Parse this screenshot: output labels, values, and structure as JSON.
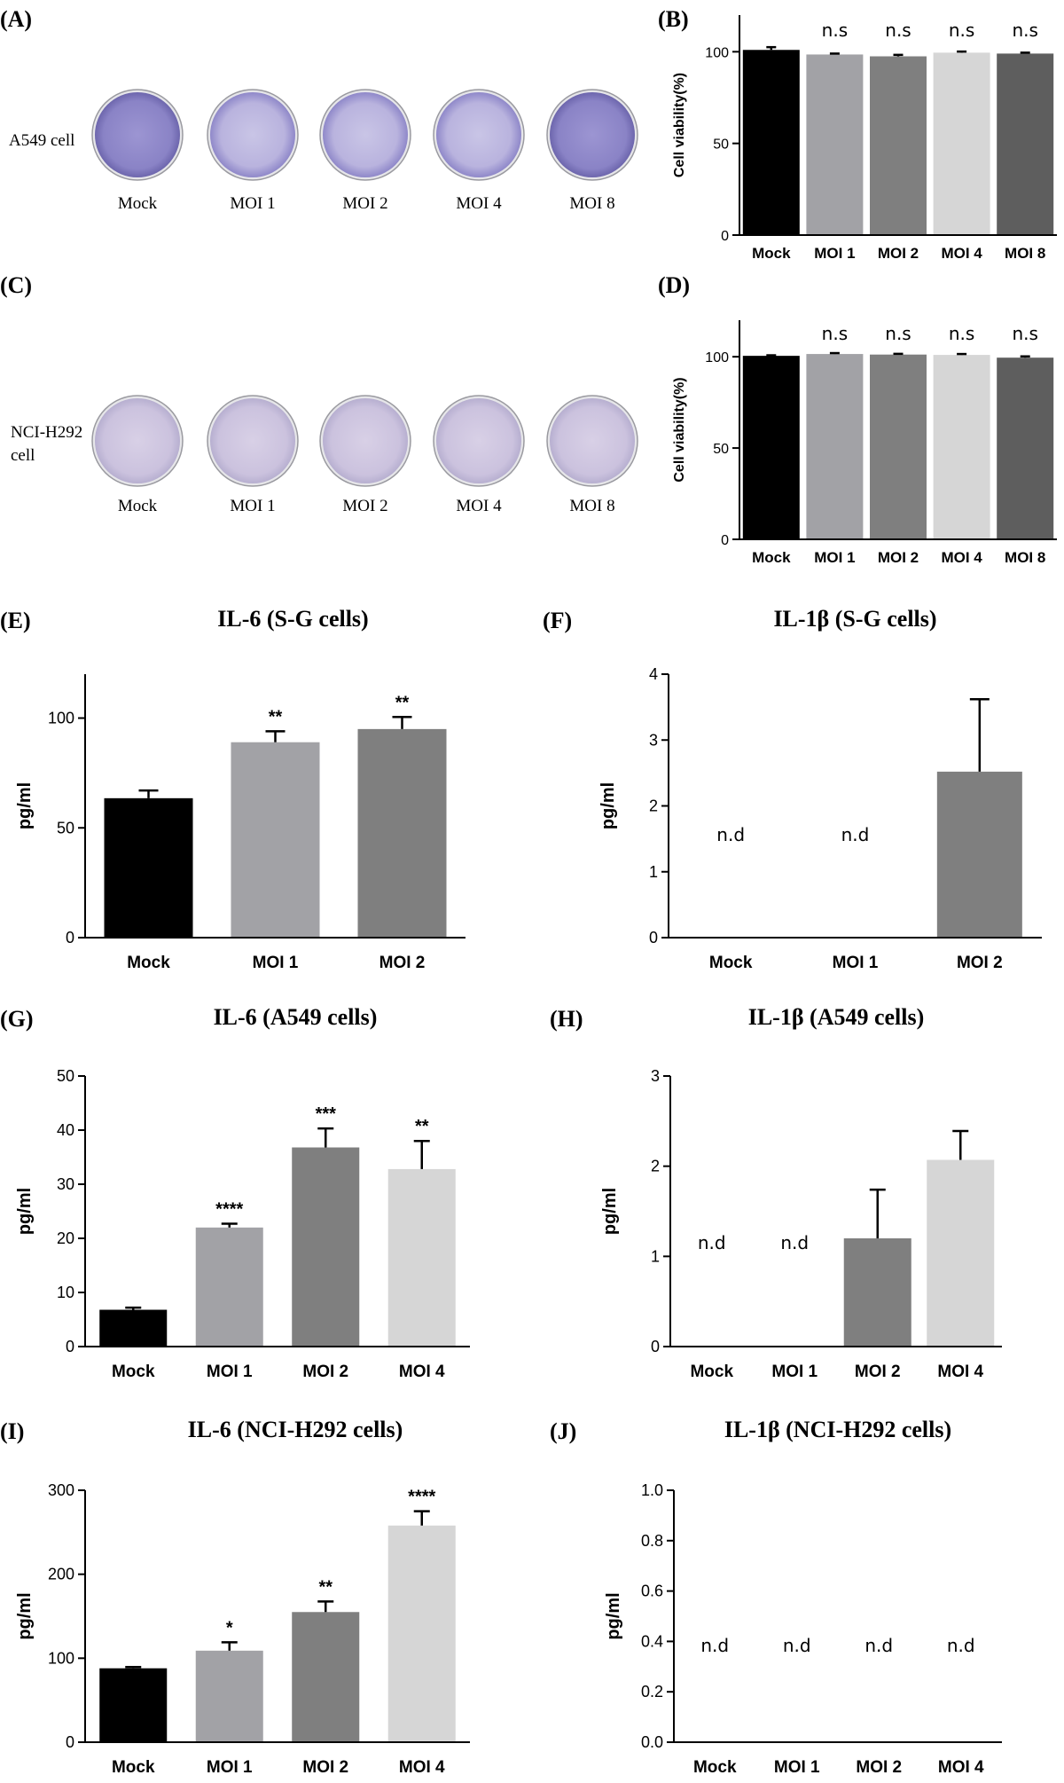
{
  "panels": {
    "A": "(A)",
    "B": "(B)",
    "C": "(C)",
    "D": "(D)",
    "E": "(E)",
    "F": "(F)",
    "G": "(G)",
    "H": "(H)",
    "I": "(I)",
    "J": "(J)"
  },
  "plates": [
    {
      "panel": "A",
      "row_label": "A549 cell",
      "labels": [
        "Mock",
        "MOI 1",
        "MOI 2",
        "MOI 4",
        "MOI 8"
      ],
      "dish_color": "#8f88c9"
    },
    {
      "panel": "C",
      "row_label": "NCI-H292 cell",
      "labels": [
        "Mock",
        "MOI 1",
        "MOI 2",
        "MOI 4",
        "MOI 8"
      ],
      "dish_color": "#c0b7d8"
    }
  ],
  "colors": {
    "Mock": "#000000",
    "MOI 1": "#a2a2a6",
    "MOI 2": "#7f7f7f",
    "MOI 4": "#d6d6d6",
    "MOI 8": "#5e5e5e"
  },
  "chart_data": [
    {
      "id": "B",
      "type": "bar",
      "title": "",
      "categories": [
        "Mock",
        "MOI 1",
        "MOI 2",
        "MOI 4",
        "MOI 8"
      ],
      "values": [
        101,
        98.5,
        97.5,
        99.5,
        99
      ],
      "errors": [
        1.5,
        0.5,
        0.8,
        0.6,
        0.5
      ],
      "annotations": [
        "",
        "n.s",
        "n.s",
        "n.s",
        "n.s"
      ],
      "ylabel": "Cell viability(%)",
      "xlabel": "",
      "ylim": [
        0,
        120
      ],
      "yticks": [
        0,
        50,
        100
      ],
      "ytick_labels": [
        "0",
        "50",
        "100"
      ]
    },
    {
      "id": "D",
      "type": "bar",
      "title": "",
      "categories": [
        "Mock",
        "MOI 1",
        "MOI 2",
        "MOI 4",
        "MOI 8"
      ],
      "values": [
        100.5,
        101.5,
        101.2,
        101,
        99.5
      ],
      "errors": [
        0.3,
        0.5,
        0.4,
        0.5,
        0.7
      ],
      "annotations": [
        "",
        "n.s",
        "n.s",
        "n.s",
        "n.s"
      ],
      "ylabel": "Cell viability(%)",
      "xlabel": "",
      "ylim": [
        0,
        120
      ],
      "yticks": [
        0,
        50,
        100
      ],
      "ytick_labels": [
        "0",
        "50",
        "100"
      ]
    },
    {
      "id": "E",
      "type": "bar",
      "title": "IL-6 (S-G cells)",
      "categories": [
        "Mock",
        "MOI 1",
        "MOI 2"
      ],
      "values": [
        63.5,
        89,
        95
      ],
      "errors": [
        3.5,
        5,
        5.5
      ],
      "annotations": [
        "",
        "**",
        "**"
      ],
      "ylabel": "pg/ml",
      "xlabel": "",
      "ylim": [
        0,
        120
      ],
      "yticks": [
        0,
        50,
        100
      ],
      "ytick_labels": [
        "0",
        "50",
        "100"
      ]
    },
    {
      "id": "F",
      "type": "bar",
      "title": "IL-1β (S-G cells)",
      "categories": [
        "Mock",
        "MOI 1",
        "MOI 2"
      ],
      "values": [
        0,
        0,
        2.52
      ],
      "errors": [
        0,
        0,
        1.1
      ],
      "annotations": [
        "n.d",
        "n.d",
        ""
      ],
      "ylabel": "pg/ml",
      "xlabel": "",
      "ylim": [
        0,
        4
      ],
      "yticks": [
        0,
        1,
        2,
        3,
        4
      ],
      "ytick_labels": [
        "0",
        "1",
        "2",
        "3",
        "4"
      ]
    },
    {
      "id": "G",
      "type": "bar",
      "title": "IL-6 (A549 cells)",
      "categories": [
        "Mock",
        "MOI 1",
        "MOI 2",
        "MOI 4"
      ],
      "values": [
        6.8,
        22,
        36.8,
        32.8
      ],
      "errors": [
        0.4,
        0.7,
        3.5,
        5.2
      ],
      "annotations": [
        "",
        "****",
        "***",
        "**"
      ],
      "ylabel": "pg/ml",
      "xlabel": "",
      "ylim": [
        0,
        50
      ],
      "yticks": [
        0,
        10,
        20,
        30,
        40,
        50
      ],
      "ytick_labels": [
        "0",
        "10",
        "20",
        "30",
        "40",
        "50"
      ]
    },
    {
      "id": "H",
      "type": "bar",
      "title": "IL-1β (A549 cells)",
      "categories": [
        "Mock",
        "MOI 1",
        "MOI 2",
        "MOI 4"
      ],
      "values": [
        0,
        0,
        1.2,
        2.07
      ],
      "errors": [
        0,
        0,
        0.54,
        0.32
      ],
      "annotations": [
        "n.d",
        "n.d",
        "",
        ""
      ],
      "ylabel": "pg/ml",
      "xlabel": "",
      "ylim": [
        0,
        3
      ],
      "yticks": [
        0,
        1,
        2,
        3
      ],
      "ytick_labels": [
        "0",
        "1",
        "2",
        "3"
      ]
    },
    {
      "id": "I",
      "type": "bar",
      "title": "IL-6 (NCI-H292 cells)",
      "categories": [
        "Mock",
        "MOI 1",
        "MOI 2",
        "MOI 4"
      ],
      "values": [
        88,
        109,
        155,
        258
      ],
      "errors": [
        1.5,
        10,
        12.5,
        17
      ],
      "annotations": [
        "",
        "*",
        "**",
        "****"
      ],
      "ylabel": "pg/ml",
      "xlabel": "",
      "ylim": [
        0,
        300
      ],
      "yticks": [
        0,
        100,
        200,
        300
      ],
      "ytick_labels": [
        "0",
        "100",
        "200",
        "300"
      ]
    },
    {
      "id": "J",
      "type": "bar",
      "title": "IL-1β (NCI-H292 cells)",
      "categories": [
        "Mock",
        "MOI 1",
        "MOI 2",
        "MOI 4"
      ],
      "values": [
        0,
        0,
        0,
        0
      ],
      "errors": [
        0,
        0,
        0,
        0
      ],
      "annotations": [
        "n.d",
        "n.d",
        "n.d",
        "n.d"
      ],
      "ylabel": "pg/ml",
      "xlabel": "",
      "ylim": [
        0,
        1
      ],
      "yticks": [
        0,
        0.2,
        0.4,
        0.6,
        0.8,
        1.0
      ],
      "ytick_labels": [
        "0.0",
        "0.2",
        "0.4",
        "0.6",
        "0.8",
        "1.0"
      ]
    }
  ]
}
